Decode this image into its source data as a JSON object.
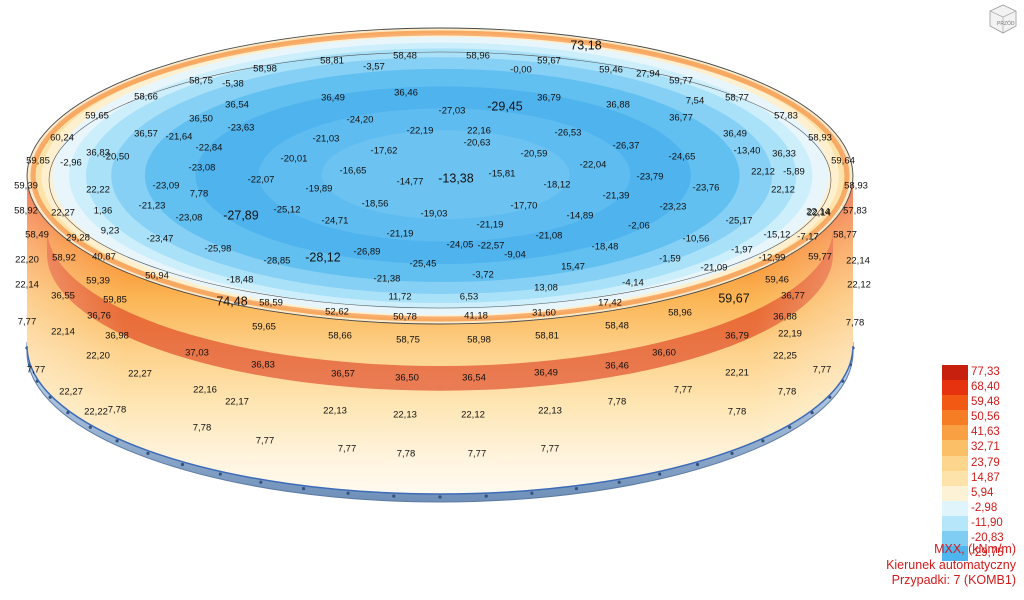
{
  "view_cube": {
    "label": "PRZÓD"
  },
  "legend": {
    "values": [
      "77,33",
      "68,40",
      "59,48",
      "50,56",
      "41,63",
      "32,71",
      "23,79",
      "14,87",
      "5,94",
      "-2,98",
      "-11,90",
      "-20,83",
      "-29,75"
    ],
    "colors": [
      "#c8200e",
      "#e6320f",
      "#f25a14",
      "#f77d24",
      "#f9a042",
      "#fbc067",
      "#fdd58c",
      "#fde3aa",
      "#fef2d6",
      "#dff4fb",
      "#b6e6f9",
      "#80cdf4",
      "#4fb5ee"
    ]
  },
  "caption": {
    "line1": "MXX, (kNm/m)",
    "line2": "Kierunek automatyczny",
    "line3": "Przypadki: 7 (KOMB1)"
  },
  "labels": {
    "top_rim": [
      "73,18",
      "58,48",
      "58,96",
      "58,81",
      "-3,57",
      "-0,00",
      "58,98",
      "59,67",
      "59,46",
      "27,94",
      "58,75",
      "-5,38",
      "59,77",
      "58,66",
      "7,54",
      "58,77",
      "59,65",
      "57,83",
      "60,24",
      "58,93",
      "59,85",
      "-2,96",
      "59,64",
      "59,39",
      "58,93",
      "58,92",
      "22,27",
      "1,36",
      "57,83",
      "22,14",
      "58,49",
      "29,28",
      "9,23",
      "58,77",
      "-7,17",
      "58,92",
      "40,87",
      "22,20",
      "59,77",
      "22,14",
      "22,14",
      "50,94",
      "59,46",
      "22,12"
    ],
    "top_inner": [
      "36,54",
      "36,49",
      "36,46",
      "36,79",
      "36,88",
      "36,50",
      "-24,20",
      "-27,03",
      "-29,45",
      "36,77",
      "36,57",
      "-21,64",
      "-23,63",
      "-21,03",
      "-22,19",
      "22,16",
      "-26,53",
      "36,49",
      "36,83",
      "-22,84",
      "-17,62",
      "-20,63",
      "-26,37",
      "-13,40",
      "36,33",
      "-20,50",
      "-20,01",
      "-16,65",
      "-20,59",
      "-22,04",
      "-24,65",
      "-5,89",
      "-23,08",
      "-14,77",
      "-13,38",
      "-15,81",
      "-23,79",
      "22,12",
      "22,22",
      "-23,09",
      "-22,07",
      "-19,89",
      "-18,12",
      "-23,76",
      "22,12",
      "7,78",
      "-18,56",
      "-21,39",
      "-21,23",
      "-23,08",
      "-27,89",
      "-25,12",
      "-19,03",
      "-17,70",
      "-23,23",
      "22,14",
      "-24,71",
      "-21,19",
      "-14,89",
      "-25,17",
      "-21,19",
      "-22,57",
      "-2,06",
      "-23,47",
      "-21,08",
      "-10,56",
      "-15,12",
      "-25,98",
      "-24,05",
      "-18,48",
      "-28,85",
      "-28,12",
      "-26,89",
      "-25,45",
      "-9,04",
      "-1,97",
      "-12,99",
      "-1,59",
      "-21,09",
      "15,47",
      "-18,48",
      "-21,38",
      "-3,72",
      "-4,14",
      "13,08"
    ],
    "wall": [
      "36,55",
      "59,39",
      "59,85",
      "74,48",
      "58,59",
      "11,72",
      "6,53",
      "17,42",
      "59,67",
      "36,77",
      "7,77",
      "36,76",
      "52,62",
      "50,78",
      "41,18",
      "31,60",
      "58,96",
      "7,78",
      "59,65",
      "58,66",
      "58,75",
      "58,98",
      "58,81",
      "58,48",
      "36,88",
      "22,14",
      "36,98",
      "22,19",
      "37,03",
      "36,60",
      "36,79",
      "22,20",
      "36,83",
      "36,57",
      "36,50",
      "36,54",
      "36,49",
      "36,46",
      "22,25",
      "7,77",
      "22,27",
      "22,21",
      "7,77",
      "22,27",
      "22,16",
      "7,77",
      "22,22",
      "22,17",
      "22,13",
      "22,13",
      "22,12",
      "22,13",
      "7,78",
      "7,78",
      "7,78",
      "7,78",
      "7,78",
      "7,77",
      "7,77",
      "7,78",
      "7,77",
      "7,77"
    ]
  }
}
